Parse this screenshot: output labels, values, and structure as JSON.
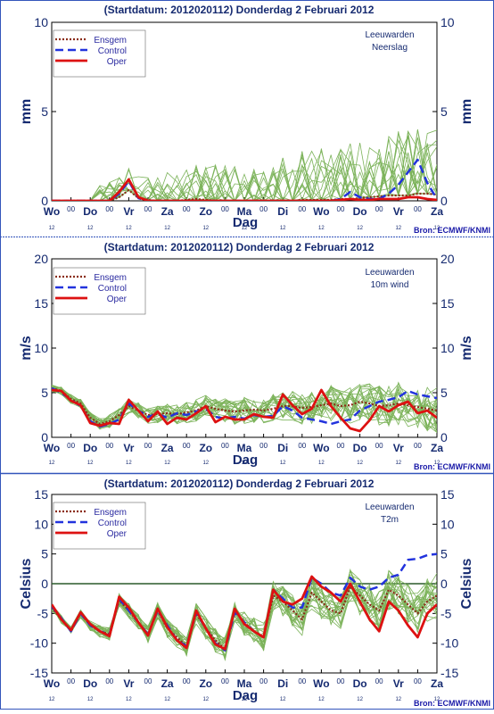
{
  "day_labels": [
    "Wo",
    "Do",
    "Vr",
    "Za",
    "Zo",
    "Ma",
    "Di",
    "Wo",
    "Do",
    "Vr",
    "Za"
  ],
  "hour_marks": [
    "12",
    "00",
    "12",
    "00",
    "12",
    "00",
    "12",
    "00",
    "12",
    "00",
    "12",
    "00",
    "12",
    "00",
    "12",
    "00",
    "12",
    "00",
    "12",
    "00",
    "12"
  ],
  "source": "Bron: ECMWF/KNMI",
  "legend": [
    "Ensgem",
    "Control",
    "Oper"
  ],
  "colors": {
    "ensgem": "#8b2d18",
    "control": "#2233dd",
    "oper": "#dd1111",
    "members": "#7cb35a",
    "text": "#152a70",
    "divider": "#3355bb"
  },
  "chart_data": [
    {
      "type": "line",
      "title": "(Startdatum: 2012020112)   Donderdag  2 Februari  2012",
      "location": "Leeuwarden",
      "variable": "Neerslag",
      "ylabel": "mm",
      "xlabel": "Dag",
      "ylim": [
        0,
        10
      ],
      "yticks": [
        0,
        5,
        10
      ],
      "zero_line": false,
      "x_step_days": 0.25,
      "series": [
        {
          "name": "Ensgem",
          "values": [
            0,
            0,
            0,
            0,
            0,
            0,
            0,
            0.2,
            0.6,
            0.15,
            0.05,
            0,
            0,
            0,
            0.05,
            0.1,
            0.05,
            0,
            0,
            0,
            0,
            0,
            0,
            0,
            0,
            0,
            0.05,
            0.05,
            0.05,
            0.05,
            0.1,
            0.1,
            0.15,
            0.2,
            0.25,
            0.3,
            0.3,
            0.3,
            0.4,
            0.4,
            0.35
          ]
        },
        {
          "name": "Control",
          "values": [
            0,
            0,
            0,
            0,
            0,
            0,
            0,
            0.4,
            1.1,
            0.15,
            0,
            0,
            0,
            0,
            0,
            0,
            0,
            0,
            0,
            0,
            0,
            0,
            0,
            0,
            0,
            0,
            0,
            0,
            0,
            0,
            0.1,
            0.5,
            0.2,
            0.1,
            0.1,
            0.4,
            0.9,
            1.6,
            2.3,
            1.0,
            0.1
          ]
        },
        {
          "name": "Oper",
          "values": [
            0,
            0,
            0,
            0,
            0,
            0,
            0,
            0.5,
            1.2,
            0.2,
            0,
            0,
            0,
            0,
            0,
            0,
            0,
            0,
            0,
            0,
            0,
            0,
            0,
            0,
            0,
            0,
            0,
            0,
            0,
            0,
            0.05,
            0.1,
            0.05,
            0.05,
            0.1,
            0.1,
            0.1,
            0.2,
            0.2,
            0.1,
            0.05
          ]
        }
      ]
    },
    {
      "type": "line",
      "title": "(Startdatum: 2012020112)   Donderdag  2 Februari  2012",
      "location": "Leeuwarden",
      "variable": "10m wind",
      "ylabel": "m/s",
      "xlabel": "Dag",
      "ylim": [
        0,
        20
      ],
      "yticks": [
        0,
        5,
        10,
        15,
        20
      ],
      "zero_line": false,
      "x_step_days": 0.25,
      "series": [
        {
          "name": "Ensgem",
          "values": [
            5.5,
            5.2,
            4.3,
            3.8,
            2.2,
            1.5,
            1.8,
            2.5,
            3.5,
            3.0,
            2.5,
            2.6,
            2.7,
            2.6,
            2.8,
            3.0,
            3.5,
            3.2,
            3.0,
            2.9,
            3.0,
            3.1,
            3.0,
            3.2,
            3.5,
            3.5,
            3.3,
            3.4,
            3.6,
            3.8,
            3.5,
            3.6,
            4.0,
            3.8,
            3.5,
            3.6,
            3.8,
            3.6,
            3.4,
            3.2,
            3.0
          ]
        },
        {
          "name": "Control",
          "values": [
            5.5,
            5.0,
            4.2,
            3.5,
            1.8,
            1.2,
            1.5,
            2.0,
            3.8,
            3.0,
            2.3,
            2.6,
            2.2,
            2.7,
            2.5,
            2.9,
            3.2,
            2.3,
            2.1,
            2.3,
            2.1,
            2.5,
            2.3,
            2.4,
            3.5,
            3.0,
            2.2,
            2.0,
            1.8,
            1.5,
            1.8,
            2.0,
            3.0,
            3.5,
            4.0,
            4.2,
            4.5,
            5.2,
            4.8,
            4.6,
            4.4
          ]
        },
        {
          "name": "Oper",
          "values": [
            5.3,
            5.2,
            4.1,
            3.6,
            1.6,
            1.3,
            1.6,
            1.5,
            4.2,
            3.0,
            1.8,
            2.9,
            1.5,
            2.2,
            2.0,
            2.7,
            3.5,
            1.7,
            2.3,
            2.0,
            2.0,
            2.6,
            2.3,
            2.2,
            4.8,
            3.6,
            2.6,
            3.2,
            5.3,
            3.5,
            2.2,
            1.0,
            0.7,
            1.9,
            3.5,
            2.9,
            3.6,
            4.0,
            2.7,
            3.0,
            2.2
          ]
        }
      ]
    },
    {
      "type": "line",
      "title": "(Startdatum: 2012020112)   Donderdag  2 Februari  2012",
      "location": "Leeuwarden",
      "variable": "T2m",
      "ylabel": "Celsius",
      "xlabel": "Dag",
      "ylim": [
        -15,
        15
      ],
      "yticks": [
        -15,
        -10,
        -5,
        0,
        5,
        10,
        15
      ],
      "zero_line": true,
      "x_step_days": 0.25,
      "series": [
        {
          "name": "Ensgem",
          "values": [
            -4,
            -6,
            -8,
            -5,
            -7,
            -8,
            -8.5,
            -2.8,
            -4.5,
            -6.5,
            -8.5,
            -4.5,
            -7.5,
            -9,
            -10.5,
            -5,
            -7.5,
            -9.5,
            -11,
            -4.5,
            -6.5,
            -8,
            -9,
            -2,
            -3,
            -4.5,
            -6,
            -1.5,
            -3,
            -4.5,
            -5,
            -0.5,
            -2,
            -3.5,
            -4.5,
            -1,
            -2,
            -3.5,
            -5,
            -3,
            -2
          ]
        },
        {
          "name": "Control",
          "values": [
            -3.8,
            -5.8,
            -8,
            -5,
            -7,
            -8,
            -8.5,
            -2.5,
            -4.5,
            -6.5,
            -8.5,
            -4.5,
            -7,
            -9.5,
            -10.5,
            -4.8,
            -7.5,
            -10,
            -11.2,
            -4.8,
            -6.5,
            -8,
            -9,
            -1,
            -2.5,
            -4,
            -4,
            1,
            0,
            -1.5,
            -2,
            1,
            -0.5,
            -1,
            -0.5,
            1,
            1.5,
            4,
            4.2,
            4.8,
            5
          ]
        },
        {
          "name": "Oper",
          "values": [
            -3.5,
            -6,
            -7.8,
            -4.8,
            -6.8,
            -8,
            -8.8,
            -2.2,
            -4,
            -6.5,
            -8.7,
            -4.2,
            -7.3,
            -9.5,
            -10.8,
            -4.5,
            -7.5,
            -10.2,
            -11,
            -4.2,
            -6.8,
            -8,
            -9,
            -1,
            -3,
            -3.5,
            -2.5,
            1.2,
            -0.5,
            -1.5,
            -3,
            0,
            -3,
            -6,
            -8,
            -3,
            -4.5,
            -7,
            -9,
            -5,
            -3.5
          ]
        }
      ]
    }
  ]
}
